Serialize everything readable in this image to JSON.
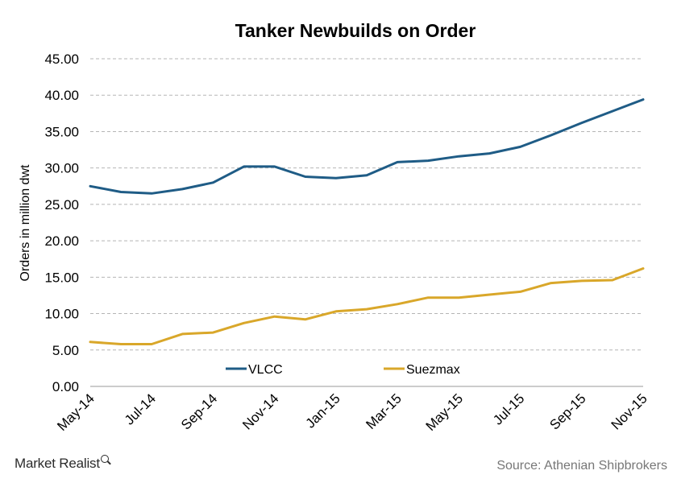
{
  "chart_data": {
    "type": "line",
    "title": "Tanker Newbuilds on Order",
    "ylabel": "Orders in million dwt",
    "xlabel": "",
    "ylim": [
      0,
      45
    ],
    "yticks": [
      "0.00",
      "5.00",
      "10.00",
      "15.00",
      "20.00",
      "25.00",
      "30.00",
      "35.00",
      "40.00",
      "45.00"
    ],
    "x": [
      "May-14",
      "Jun-14",
      "Jul-14",
      "Aug-14",
      "Sep-14",
      "Oct-14",
      "Nov-14",
      "Dec-14",
      "Jan-15",
      "Feb-15",
      "Mar-15",
      "Apr-15",
      "May-15",
      "Jun-15",
      "Jul-15",
      "Aug-15",
      "Sep-15",
      "Oct-15",
      "Nov-15"
    ],
    "xtick_labels": [
      "May-14",
      "Jul-14",
      "Sep-14",
      "Nov-14",
      "Jan-15",
      "Mar-15",
      "May-15",
      "Jul-15",
      "Sep-15",
      "Nov-15"
    ],
    "grid": true,
    "legend_position": "bottom",
    "series": [
      {
        "name": "VLCC",
        "color": "#1f5c86",
        "values": [
          27.5,
          26.7,
          26.5,
          27.1,
          28.0,
          30.2,
          30.2,
          28.8,
          28.6,
          29.0,
          30.8,
          31.0,
          31.6,
          32.0,
          32.9,
          34.5,
          36.2,
          37.8,
          39.4
        ]
      },
      {
        "name": "Suezmax",
        "color": "#d9a72a",
        "values": [
          6.1,
          5.8,
          5.8,
          7.2,
          7.4,
          8.7,
          9.6,
          9.2,
          10.3,
          10.6,
          11.3,
          12.2,
          12.2,
          12.6,
          13.0,
          14.2,
          14.5,
          14.6,
          16.2
        ]
      }
    ]
  },
  "footer": {
    "brand": "Market Realist",
    "source": "Source: Athenian Shipbrokers"
  }
}
